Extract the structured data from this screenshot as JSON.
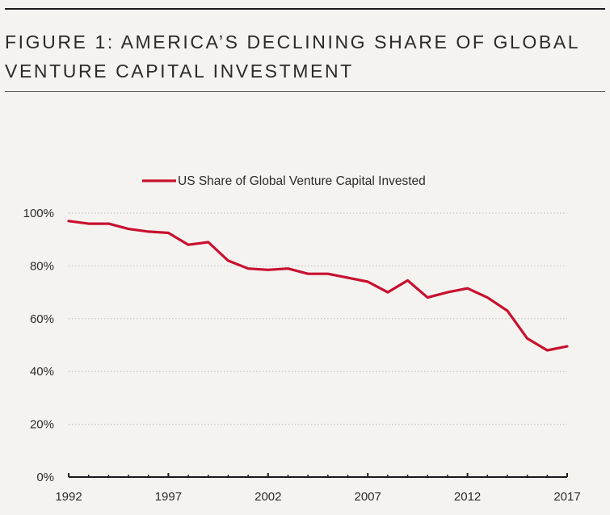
{
  "figure": {
    "title_line1": "FIGURE 1: AMERICA’S DECLINING SHARE OF GLOBAL",
    "title_line2": "VENTURE CAPITAL INVESTMENT"
  },
  "colors": {
    "series": "#c8102e",
    "grid": "#bdbdbd",
    "axis": "#1a1a1a",
    "background": "#f4f3f0"
  },
  "chart_data": {
    "type": "line",
    "title": "",
    "xlabel": "",
    "ylabel": "",
    "x": [
      1992,
      1993,
      1994,
      1995,
      1996,
      1997,
      1998,
      1999,
      2000,
      2001,
      2002,
      2003,
      2004,
      2005,
      2006,
      2007,
      2008,
      2009,
      2010,
      2011,
      2012,
      2013,
      2014,
      2015,
      2016,
      2017
    ],
    "series": [
      {
        "name": "US Share of Global Venture Capital Invested",
        "values": [
          97,
          96,
          96,
          94,
          93,
          92.5,
          88,
          89,
          82,
          79,
          78.5,
          79,
          77,
          77,
          75.5,
          74,
          70,
          74.5,
          68,
          70,
          71.5,
          68,
          63,
          52.5,
          48,
          49.5
        ]
      }
    ],
    "xlim": [
      1992,
      2017
    ],
    "ylim": [
      0,
      100
    ],
    "x_ticks": [
      "1992",
      "1997",
      "2002",
      "2007",
      "2012",
      "2017"
    ],
    "y_ticks": [
      "0%",
      "20%",
      "40%",
      "60%",
      "80%",
      "100%"
    ],
    "grid": true,
    "legend": "top-center"
  }
}
